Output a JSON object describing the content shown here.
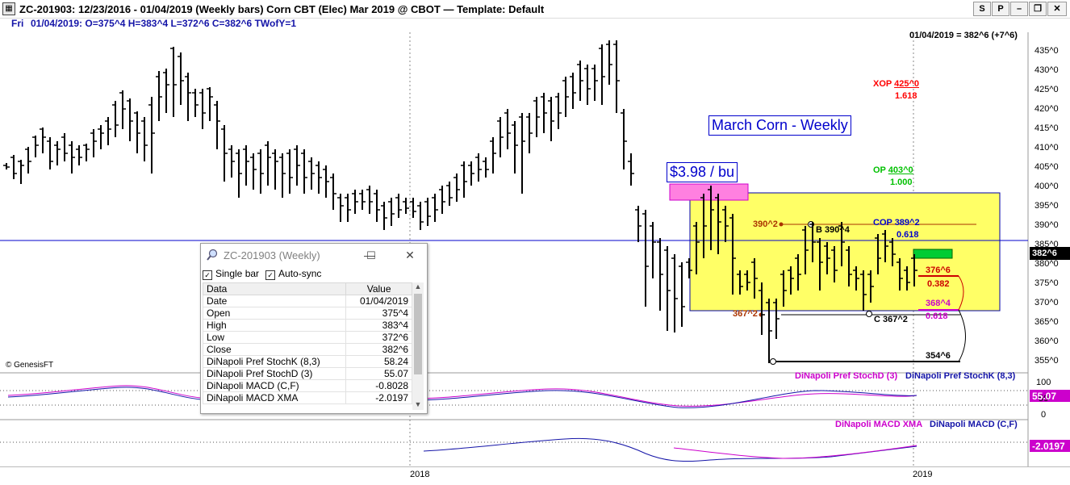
{
  "window": {
    "title": "ZC-201903:  12/23/2016 - 01/04/2019  (Weekly bars)   Corn CBT (Elec) Mar 2019 @ CBOT   —  Template: Default",
    "buttons": [
      "S",
      "P",
      "–",
      "❐",
      "✕"
    ]
  },
  "info": {
    "day": "Fri",
    "ohlc": "01/04/2019:  O=375^4  H=383^4  L=372^6  C=382^6  TWofY=1"
  },
  "chart": {
    "last_update": "01/04/2019 = 382^6 (+7^6)",
    "title_box": "March Corn - Weekly",
    "price_box": "$3.98 / bu",
    "copyright": "© GenesisFT",
    "price_axis": [
      "435^0",
      "430^0",
      "425^0",
      "420^0",
      "415^0",
      "410^0",
      "405^0",
      "400^0",
      "395^0",
      "390^0",
      "385^0",
      "380^0",
      "375^0",
      "370^0",
      "365^0",
      "360^0",
      "355^0"
    ],
    "current_price_tag": "382^6",
    "annotations": {
      "xop_label": "XOP",
      "xop_value": "425^0",
      "xop_ratio": "1.618",
      "op_label": "OP",
      "op_value": "403^0",
      "op_ratio": "1.000",
      "cop_label": "COP 389^2",
      "cop_ratio": "0.618",
      "a_label": "390^2",
      "b_label": "B 390^4",
      "low_a": "367^2",
      "c_label": "C 367^2",
      "r382_value": "376^6",
      "r382_ratio": "0.382",
      "r618_value": "368^4",
      "r618_ratio": "0.618",
      "low_value": "354^6"
    },
    "stoch": {
      "legend_d": "DiNapoli Pref StochD (3)",
      "legend_k": "DiNapoli Pref StochK (8,3)",
      "axis": [
        "100",
        "50",
        "0"
      ],
      "tag": "55.07"
    },
    "macd": {
      "legend_xma": "DiNapoli MACD XMA",
      "legend_macd": "DiNapoli MACD (C,F)",
      "tag": "-2.0197"
    },
    "time_axis": [
      "2018",
      "2019"
    ]
  },
  "colors": {
    "bars": "#000000",
    "cop": "#0000cc",
    "op": "#00c000",
    "xop": "#ff0000",
    "zone": "#ffff66",
    "magenta": "#cc00cc",
    "brown": "#aa3300"
  },
  "data_window": {
    "title": "ZC-201903 (Weekly)",
    "single_bar_label": "Single bar",
    "auto_sync_label": "Auto-sync",
    "single_bar_checked": true,
    "auto_sync_checked": true,
    "col_data": "Data",
    "col_value": "Value",
    "rows": [
      [
        "Date",
        "01/04/2019"
      ],
      [
        "Open",
        "375^4"
      ],
      [
        "High",
        "383^4"
      ],
      [
        "Low",
        "372^6"
      ],
      [
        "Close",
        "382^6"
      ],
      [
        "DiNapoli Pref StochK (8,3)",
        "58.24"
      ],
      [
        "DiNapoli Pref StochD (3)",
        "55.07"
      ],
      [
        "DiNapoli MACD (C,F)",
        "-0.8028"
      ],
      [
        "DiNapoli MACD XMA",
        "-2.0197"
      ]
    ]
  }
}
